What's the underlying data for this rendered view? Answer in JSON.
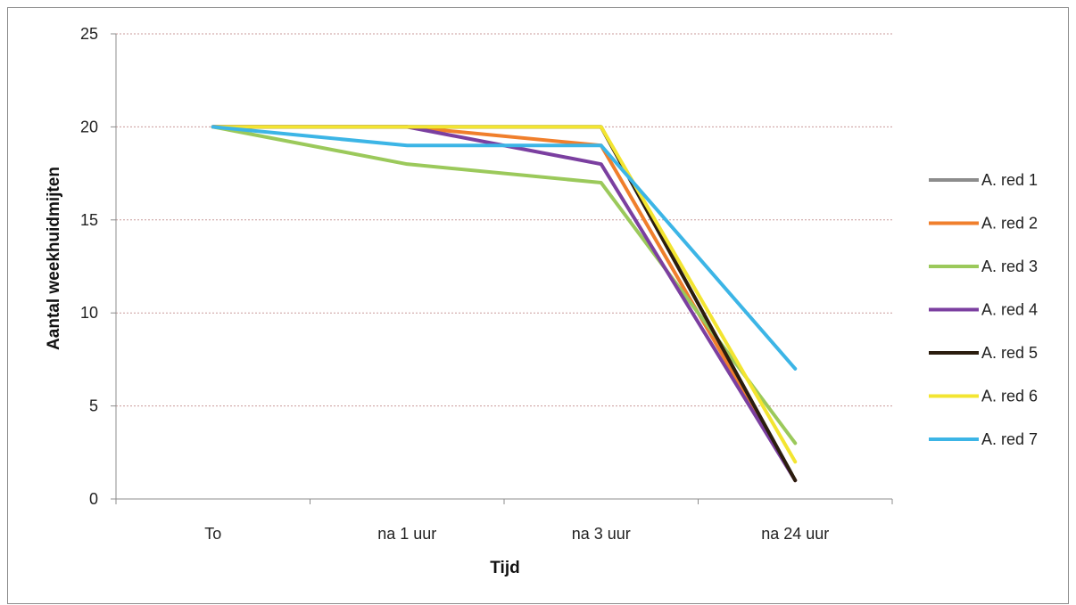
{
  "chart_data": {
    "type": "line",
    "categories": [
      "To",
      "na 1 uur",
      "na 3 uur",
      "na 24 uur"
    ],
    "ylim": [
      0,
      25
    ],
    "yticks": [
      0,
      5,
      10,
      15,
      20,
      25
    ],
    "xlabel": "Tijd",
    "ylabel": "Aantal weekhuidmijten",
    "grid": true,
    "legend_position": "right",
    "series": [
      {
        "name": "A. red 1",
        "color": "#8c8c8c",
        "values": [
          20,
          20,
          20,
          1
        ]
      },
      {
        "name": "A. red 2",
        "color": "#f07f2c",
        "values": [
          20,
          20,
          19,
          1
        ]
      },
      {
        "name": "A. red 3",
        "color": "#9bc95b",
        "values": [
          20,
          18,
          17,
          3
        ]
      },
      {
        "name": "A. red 4",
        "color": "#7b3fa0",
        "values": [
          20,
          20,
          18,
          1
        ]
      },
      {
        "name": "A. red 5",
        "color": "#2b1d0e",
        "values": [
          20,
          20,
          20,
          1
        ]
      },
      {
        "name": "A. red 6",
        "color": "#f3e531",
        "values": [
          20,
          20,
          20,
          2
        ]
      },
      {
        "name": "A. red 7",
        "color": "#3cb5e6",
        "values": [
          20,
          19,
          19,
          7
        ]
      }
    ]
  }
}
